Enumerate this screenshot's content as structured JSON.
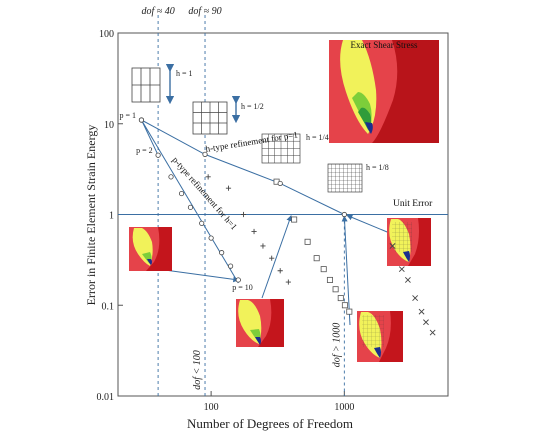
{
  "chart_data": {
    "type": "scatter",
    "x_scale": "log",
    "y_scale": "log",
    "xlim": [
      20,
      6000
    ],
    "ylim": [
      0.01,
      100
    ],
    "xlabel": "Number of Degrees of Freedom",
    "ylabel": "Error in Finite Element Strain Energy",
    "x_ticks": [
      {
        "value": 100,
        "label": "100"
      },
      {
        "value": 1000,
        "label": "1000"
      }
    ],
    "y_ticks": [
      {
        "value": 0.01,
        "label": "0.01"
      },
      {
        "value": 0.1,
        "label": "0.1"
      },
      {
        "value": 1,
        "label": "1"
      },
      {
        "value": 10,
        "label": "10"
      },
      {
        "value": 100,
        "label": "100"
      }
    ],
    "unit_error": {
      "y": 1,
      "label": "Unit Error"
    },
    "vertical_lines": [
      {
        "x": 40,
        "label": "dof ≈ 40"
      },
      {
        "x": 90,
        "label": "dof ≈ 90"
      },
      {
        "x": 90,
        "label": "dof < 100"
      },
      {
        "x": 1000,
        "label": "dof > 1000"
      }
    ],
    "p_refinement": {
      "label": "p-type refinement for h=1",
      "x": [
        30,
        40,
        50,
        60,
        70,
        85,
        100,
        120,
        140,
        160
      ],
      "y": [
        11,
        4.5,
        2.6,
        1.7,
        1.2,
        0.8,
        0.55,
        0.38,
        0.27,
        0.19
      ],
      "labels": [
        {
          "index": 0,
          "text": "p = 1"
        },
        {
          "index": 1,
          "text": "p = 2"
        },
        {
          "index": 9,
          "text": "p = 10"
        }
      ]
    },
    "h_refinement": {
      "label": "h-type refinement for p=1",
      "x": [
        30,
        90,
        330,
        1000
      ],
      "y": [
        11,
        4.6,
        2.2,
        1.0
      ],
      "labels": [
        {
          "index": 0,
          "text": "h = 1"
        },
        {
          "index": 1,
          "text": "h = 1/2"
        },
        {
          "index": 2,
          "text": "h = 1/4"
        },
        {
          "index": 3,
          "text": "h = 1/8"
        }
      ]
    },
    "series": [
      {
        "name": "+",
        "marker": "plus",
        "x": [
          95,
          135,
          175,
          210,
          245,
          285,
          330,
          380
        ],
        "y": [
          2.6,
          1.95,
          1.0,
          0.65,
          0.45,
          0.33,
          0.24,
          0.18
        ]
      },
      {
        "name": "□",
        "marker": "square",
        "x": [
          310,
          420,
          530,
          620,
          700,
          780,
          860,
          940,
          1010,
          1090
        ],
        "y": [
          2.3,
          0.88,
          0.5,
          0.33,
          0.25,
          0.19,
          0.15,
          0.12,
          0.1,
          0.085
        ]
      },
      {
        "name": "×",
        "marker": "x",
        "x": [
          2300,
          2700,
          3000,
          3400,
          3800,
          4100,
          4600
        ],
        "y": [
          0.45,
          0.25,
          0.19,
          0.12,
          0.085,
          0.065,
          0.05
        ]
      }
    ],
    "annotations": [
      {
        "text": "Exact Shear Stress"
      }
    ]
  }
}
